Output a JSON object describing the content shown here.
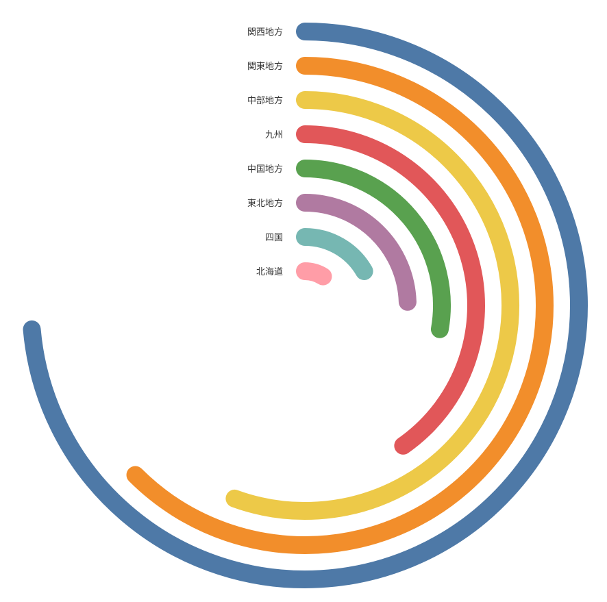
{
  "chart_data": {
    "type": "radial-bar",
    "categories": [
      "関西地方",
      "関東地方",
      "中部地方",
      "九州",
      "中国地方",
      "東北地方",
      "四国",
      "北海道"
    ],
    "values": [
      265,
      225,
      200,
      145,
      100,
      88,
      60,
      32
    ],
    "unit": "degrees",
    "colors": [
      "#4e79a7",
      "#f28e2b",
      "#edc948",
      "#e15759",
      "#59a14f",
      "#b07aa1",
      "#76b7b2",
      "#ff9da7"
    ],
    "title": "",
    "legend": "none"
  }
}
